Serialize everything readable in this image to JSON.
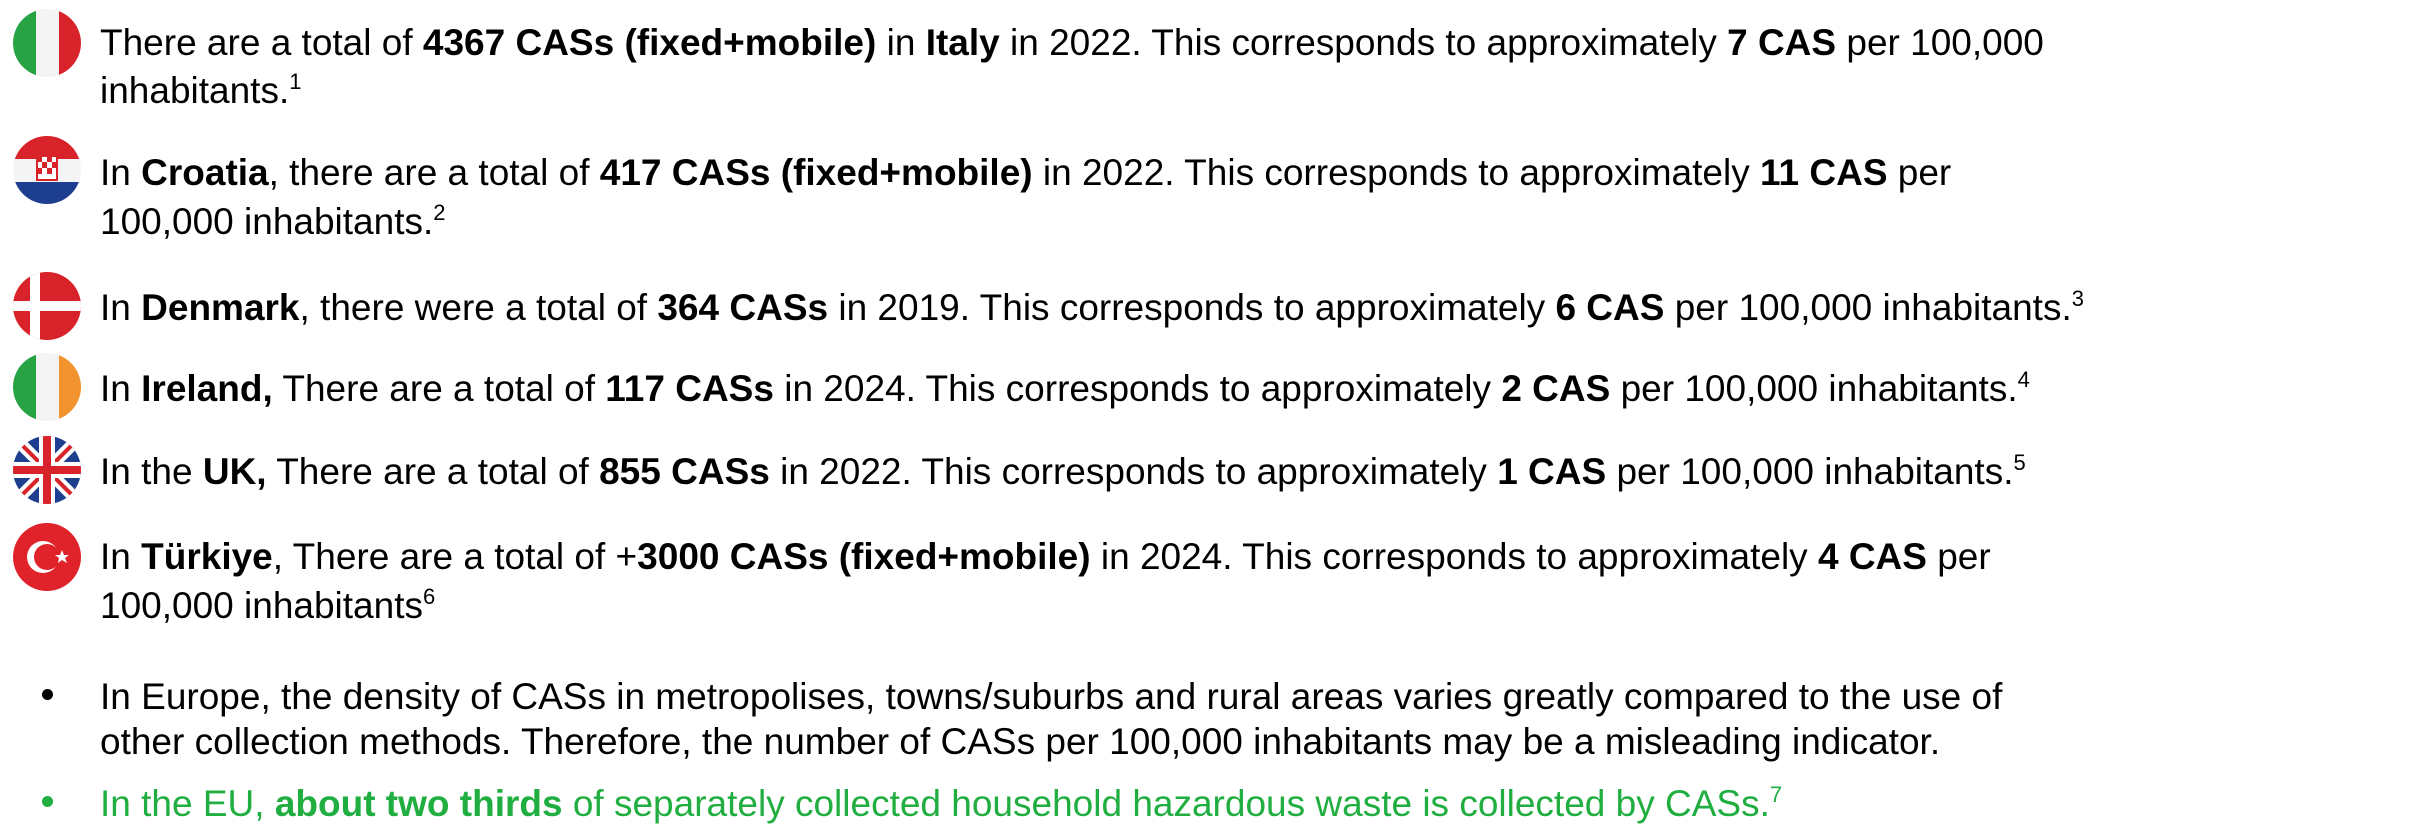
{
  "items": [
    {
      "flag": "italy",
      "lines": [
        [
          {
            "text": "There are a total of "
          },
          {
            "text": "4367 CASs (fixed+mobile)",
            "bold": true
          },
          {
            "text": " in "
          },
          {
            "text": "Italy",
            "bold": true
          },
          {
            "text": " in 2022. This corresponds to approximately "
          },
          {
            "text": "7 CAS",
            "bold": true
          },
          {
            "text": " per 100,000"
          }
        ],
        [
          {
            "text": "inhabitants."
          },
          {
            "text": "1",
            "sup": true
          }
        ]
      ]
    },
    {
      "flag": "croatia",
      "lines": [
        [
          {
            "text": "In "
          },
          {
            "text": "Croatia",
            "bold": true
          },
          {
            "text": ", there are a total of "
          },
          {
            "text": "417 CASs (fixed+mobile)",
            "bold": true
          },
          {
            "text": " in 2022. This corresponds to approximately "
          },
          {
            "text": "11 CAS",
            "bold": true
          },
          {
            "text": " per"
          }
        ],
        [
          {
            "text": "100,000 inhabitants."
          },
          {
            "text": "2",
            "sup": true
          }
        ]
      ]
    },
    {
      "flag": "denmark",
      "lines": [
        [
          {
            "text": "In "
          },
          {
            "text": "Denmark",
            "bold": true
          },
          {
            "text": ", there were a total of "
          },
          {
            "text": "364 CASs",
            "bold": true
          },
          {
            "text": " in 2019. This corresponds to approximately "
          },
          {
            "text": "6 CAS",
            "bold": true
          },
          {
            "text": " per 100,000 inhabitants."
          },
          {
            "text": "3",
            "sup": true
          }
        ]
      ]
    },
    {
      "flag": "ireland",
      "lines": [
        [
          {
            "text": "In "
          },
          {
            "text": "Ireland,",
            "bold": true
          },
          {
            "text": " There are a total of "
          },
          {
            "text": "117 CASs",
            "bold": true
          },
          {
            "text": " in 2024. This corresponds to approximately "
          },
          {
            "text": "2 CAS",
            "bold": true
          },
          {
            "text": " per 100,000 inhabitants."
          },
          {
            "text": "4",
            "sup": true
          }
        ]
      ]
    },
    {
      "flag": "uk",
      "lines": [
        [
          {
            "text": "In the "
          },
          {
            "text": "UK,",
            "bold": true
          },
          {
            "text": " There are a total of "
          },
          {
            "text": "855 CASs",
            "bold": true
          },
          {
            "text": " in 2022. This corresponds to approximately "
          },
          {
            "text": "1 CAS",
            "bold": true
          },
          {
            "text": " per 100,000 inhabitants."
          },
          {
            "text": "5",
            "sup": true
          }
        ]
      ]
    },
    {
      "flag": "turkiye",
      "lines": [
        [
          {
            "text": "In "
          },
          {
            "text": "Türkiye",
            "bold": true
          },
          {
            "text": ", There are a total of +"
          },
          {
            "text": "3000 CASs (fixed+mobile)",
            "bold": true
          },
          {
            "text": " in 2024. This corresponds to approximately "
          },
          {
            "text": "4 CAS",
            "bold": true
          },
          {
            "text": " per"
          }
        ],
        [
          {
            "text": "100,000 inhabitants"
          },
          {
            "text": "6",
            "sup": true
          }
        ]
      ]
    }
  ],
  "bullets": [
    {
      "color": "#000000",
      "lines": [
        [
          {
            "text": "In Europe, the density of CASs in metropolises, towns/suburbs and rural areas varies greatly compared to the use of"
          }
        ],
        [
          {
            "text": "other collection methods. Therefore, the number of CASs per 100,000 inhabitants may be a misleading indicator."
          }
        ]
      ]
    },
    {
      "color": "#1fae3f",
      "lines": [
        [
          {
            "text": "In the EU, "
          },
          {
            "text": "about two thirds",
            "bold": true
          },
          {
            "text": " of separately collected household hazardous waste is collected by CASs."
          },
          {
            "text": "7",
            "sup": true
          }
        ]
      ]
    }
  ]
}
